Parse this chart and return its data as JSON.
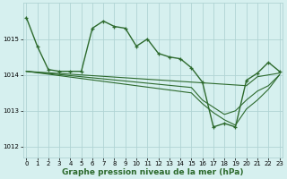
{
  "hours": [
    0,
    1,
    2,
    3,
    4,
    5,
    6,
    7,
    8,
    9,
    10,
    11,
    12,
    13,
    14,
    15,
    16,
    17,
    18,
    19,
    20,
    21,
    22,
    23
  ],
  "main_values": [
    1015.6,
    1014.8,
    1014.15,
    1014.1,
    1014.1,
    1014.1,
    1015.3,
    1015.5,
    1015.35,
    1015.3,
    1014.8,
    1015.0,
    1014.6,
    1014.5,
    1014.45,
    1014.2,
    1013.8,
    1012.55,
    1012.65,
    1012.55,
    1013.85,
    1014.05,
    1014.35,
    1014.1
  ],
  "line2": [
    1014.1,
    1014.08,
    1014.06,
    1014.04,
    1014.02,
    1014.0,
    1013.98,
    1013.96,
    1013.94,
    1013.92,
    1013.9,
    1013.88,
    1013.86,
    1013.84,
    1013.82,
    1013.8,
    1013.78,
    1013.76,
    1013.74,
    1013.72,
    1013.7,
    1013.95,
    1014.0,
    1014.05
  ],
  "line3": [
    1014.1,
    1014.07,
    1014.04,
    1014.01,
    1013.98,
    1013.95,
    1013.92,
    1013.89,
    1013.86,
    1013.83,
    1013.8,
    1013.77,
    1013.74,
    1013.71,
    1013.68,
    1013.65,
    1013.3,
    1013.1,
    1012.9,
    1013.0,
    1013.3,
    1013.55,
    1013.7,
    1014.0
  ],
  "line4": [
    1014.1,
    1014.06,
    1014.02,
    1013.98,
    1013.94,
    1013.9,
    1013.86,
    1013.82,
    1013.78,
    1013.74,
    1013.7,
    1013.66,
    1013.62,
    1013.58,
    1013.54,
    1013.5,
    1013.2,
    1012.95,
    1012.75,
    1012.6,
    1013.05,
    1013.3,
    1013.6,
    1014.0
  ],
  "ylim": [
    1011.7,
    1016.0
  ],
  "yticks": [
    1012,
    1013,
    1014,
    1015
  ],
  "xlim": [
    -0.3,
    23.3
  ],
  "xticks": [
    0,
    1,
    2,
    3,
    4,
    5,
    6,
    7,
    8,
    9,
    10,
    11,
    12,
    13,
    14,
    15,
    16,
    17,
    18,
    19,
    20,
    21,
    22,
    23
  ],
  "xlabel": "Graphe pression niveau de la mer (hPa)",
  "bg_color": "#d6f0ef",
  "grid_color": "#b0d4d4",
  "line_color": "#2d6a2d",
  "tick_fontsize": 5.0,
  "label_fontsize": 6.5
}
